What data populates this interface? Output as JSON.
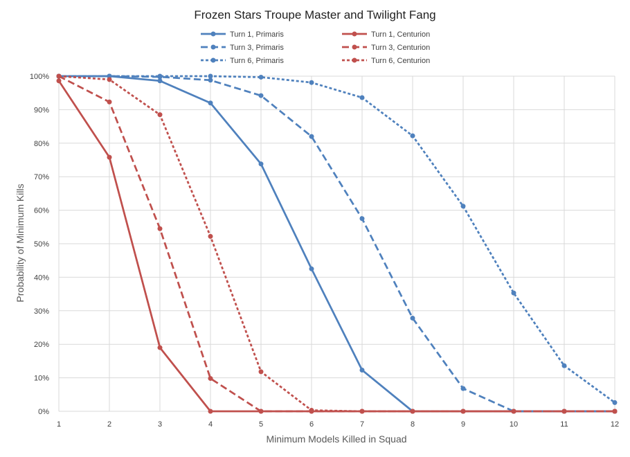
{
  "chart_data": {
    "type": "line",
    "title": "Frozen Stars Troupe Master and Twilight Fang",
    "xlabel": "Minimum Models Killed in Squad",
    "ylabel": "Probability of Minimum Kills",
    "x": [
      1,
      2,
      3,
      4,
      5,
      6,
      7,
      8,
      9,
      10,
      11,
      12
    ],
    "xlim": [
      1,
      12
    ],
    "ylim": [
      0,
      100
    ],
    "y_ticks": [
      "0%",
      "10%",
      "20%",
      "30%",
      "40%",
      "50%",
      "60%",
      "70%",
      "80%",
      "90%",
      "100%"
    ],
    "grid": true,
    "legend_position": "top",
    "series": [
      {
        "name": "Turn 1, Primaris",
        "color": "#4f81bd",
        "dash": "solid",
        "values": [
          100,
          100,
          98.6,
          92,
          73.8,
          42.5,
          12.3,
          0,
          0,
          0,
          0,
          0
        ]
      },
      {
        "name": "Turn 1, Centurion",
        "color": "#c0504d",
        "dash": "solid",
        "values": [
          98.6,
          75.8,
          19,
          0,
          0,
          0,
          0,
          0,
          0,
          0,
          0,
          0
        ]
      },
      {
        "name": "Turn 3, Primaris",
        "color": "#4f81bd",
        "dash": "dashed",
        "values": [
          100,
          100,
          99.8,
          98.8,
          94.2,
          82,
          57.5,
          27.8,
          6.8,
          0,
          0,
          0
        ]
      },
      {
        "name": "Turn 3, Centurion",
        "color": "#c0504d",
        "dash": "dashed",
        "values": [
          100,
          92.3,
          54.5,
          9.8,
          0,
          0,
          0,
          0,
          0,
          0,
          0,
          0
        ]
      },
      {
        "name": "Turn 6, Primaris",
        "color": "#4f81bd",
        "dash": "dotted",
        "values": [
          100,
          100,
          100,
          100,
          99.7,
          98.1,
          93.6,
          82.2,
          61.2,
          35.3,
          13.6,
          2.6
        ]
      },
      {
        "name": "Turn 6, Centurion",
        "color": "#c0504d",
        "dash": "dotted",
        "values": [
          100,
          99,
          88.5,
          52.2,
          11.8,
          0.3,
          0,
          0,
          0,
          0,
          0,
          0
        ]
      }
    ]
  }
}
